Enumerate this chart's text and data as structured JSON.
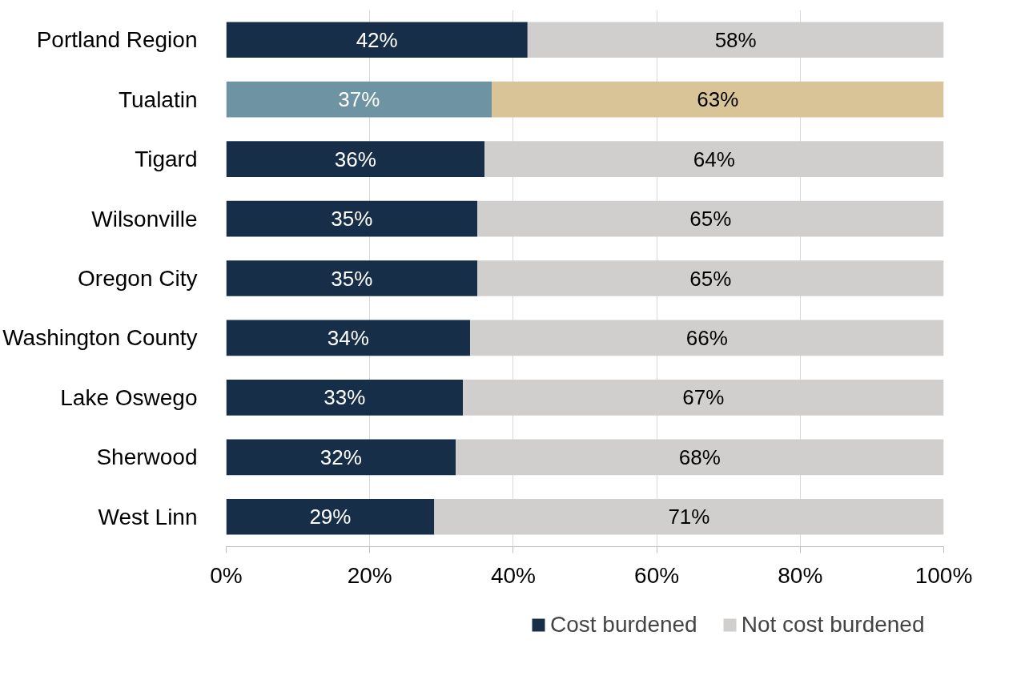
{
  "chart_data": {
    "type": "bar",
    "orientation": "horizontal",
    "stacked": true,
    "categories": [
      "Portland Region",
      "Tualatin",
      "Tigard",
      "Wilsonville",
      "Oregon City",
      "Washington County",
      "Lake Oswego",
      "Sherwood",
      "West Linn"
    ],
    "series": [
      {
        "name": "Cost burdened",
        "color": "#172e48",
        "colors": [
          "#172e48",
          "#6e93a3",
          "#172e48",
          "#172e48",
          "#172e48",
          "#172e48",
          "#172e48",
          "#172e48",
          "#172e48"
        ],
        "values": [
          42,
          37,
          36,
          35,
          35,
          34,
          33,
          32,
          29
        ],
        "value_labels": [
          "42%",
          "37%",
          "36%",
          "35%",
          "35%",
          "34%",
          "33%",
          "32%",
          "29%"
        ]
      },
      {
        "name": "Not cost burdened",
        "color": "#d0cfcd",
        "colors": [
          "#d0cfcd",
          "#d8c496",
          "#d0cfcd",
          "#d0cfcd",
          "#d0cfcd",
          "#d0cfcd",
          "#d0cfcd",
          "#d0cfcd",
          "#d0cfcd"
        ],
        "values": [
          58,
          63,
          64,
          65,
          65,
          66,
          67,
          68,
          71
        ],
        "value_labels": [
          "58%",
          "63%",
          "64%",
          "65%",
          "65%",
          "66%",
          "67%",
          "68%",
          "71%"
        ]
      }
    ],
    "xlim": [
      0,
      100
    ],
    "xticks": [
      {
        "value": 0,
        "label": "0%"
      },
      {
        "value": 20,
        "label": "20%"
      },
      {
        "value": 40,
        "label": "40%"
      },
      {
        "value": 60,
        "label": "60%"
      },
      {
        "value": 80,
        "label": "80%"
      },
      {
        "value": 100,
        "label": "100%"
      }
    ],
    "grid": "x",
    "legend": "bottom"
  }
}
